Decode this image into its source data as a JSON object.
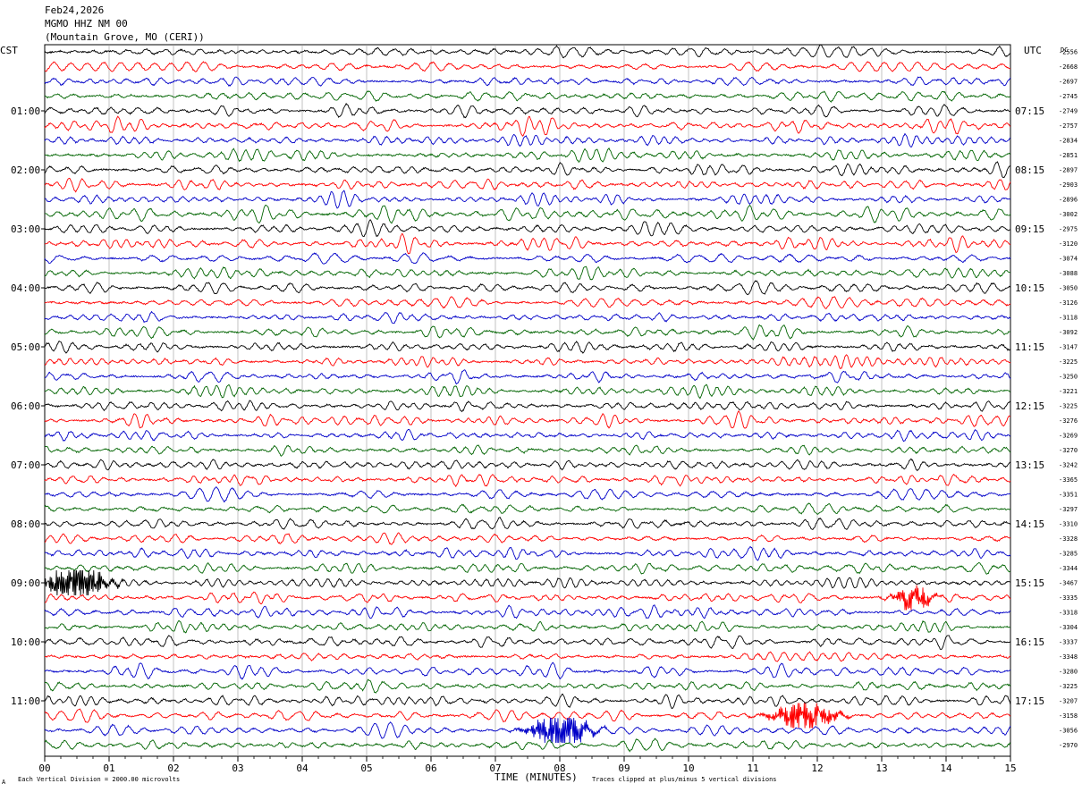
{
  "header": {
    "date": "Feb24,2026",
    "station": "MGMO HHZ NM 00",
    "location": "(Mountain Grove, MO (CERI))"
  },
  "left_zone": "CST",
  "right_zone": "UTC",
  "dc_label": "DC",
  "footer": {
    "left_mark": "A",
    "scale_note": "Each Vertical Division = 2000.00 microvolts",
    "xlabel": "TIME (MINUTES)",
    "clip_note": "Traces clipped at plus/minus 5 vertical divisions"
  },
  "chart_data": {
    "type": "line",
    "x_ticks": [
      "00",
      "01",
      "02",
      "03",
      "04",
      "05",
      "06",
      "07",
      "08",
      "09",
      "10",
      "11",
      "12",
      "13",
      "14",
      "15"
    ],
    "xlim": [
      0,
      15
    ],
    "left_time_labels": [
      "01:00",
      "02:00",
      "03:00",
      "04:00",
      "05:00",
      "06:00",
      "07:00",
      "08:00",
      "09:00",
      "10:00",
      "11:00"
    ],
    "right_time_labels": [
      "07:15",
      "08:15",
      "09:15",
      "10:15",
      "11:15",
      "12:15",
      "13:15",
      "14:15",
      "15:15",
      "16:15",
      "17:15"
    ],
    "dc_offsets": [
      "-2556",
      "-2668",
      "-2697",
      "-2745",
      "-2749",
      "-2757",
      "-2834",
      "-2851",
      "-2897",
      "-2903",
      "-2896",
      "-3002",
      "-2975",
      "-3120",
      "-3074",
      "-3088",
      "-3050",
      "-3126",
      "-3118",
      "-3092",
      "-3147",
      "-3225",
      "-3250",
      "-3221",
      "-3225",
      "-3276",
      "-3269",
      "-3270",
      "-3242",
      "-3365",
      "-3351",
      "-3297",
      "-3310",
      "-3328",
      "-3285",
      "-3344",
      "-3467",
      "-3335",
      "-3318",
      "-3304",
      "-3337",
      "-3348",
      "-3280",
      "-3225",
      "-3207",
      "-3158",
      "-3056",
      "-2970"
    ],
    "trace_colors": [
      "#000000",
      "#ff0000",
      "#0000c8",
      "#006400"
    ],
    "trace_count": 48,
    "rows_per_hour": 4,
    "minutes_per_row": 15,
    "events": [
      {
        "row": 36,
        "minute": 0.5,
        "amplitude": 3.5,
        "duration": 0.6
      },
      {
        "row": 37,
        "minute": 13.5,
        "amplitude": 2.0,
        "duration": 0.4
      },
      {
        "row": 45,
        "minute": 11.8,
        "amplitude": 2.0,
        "duration": 0.7
      },
      {
        "row": 46,
        "minute": 8.0,
        "amplitude": 3.0,
        "duration": 0.6
      }
    ],
    "grid": true
  }
}
